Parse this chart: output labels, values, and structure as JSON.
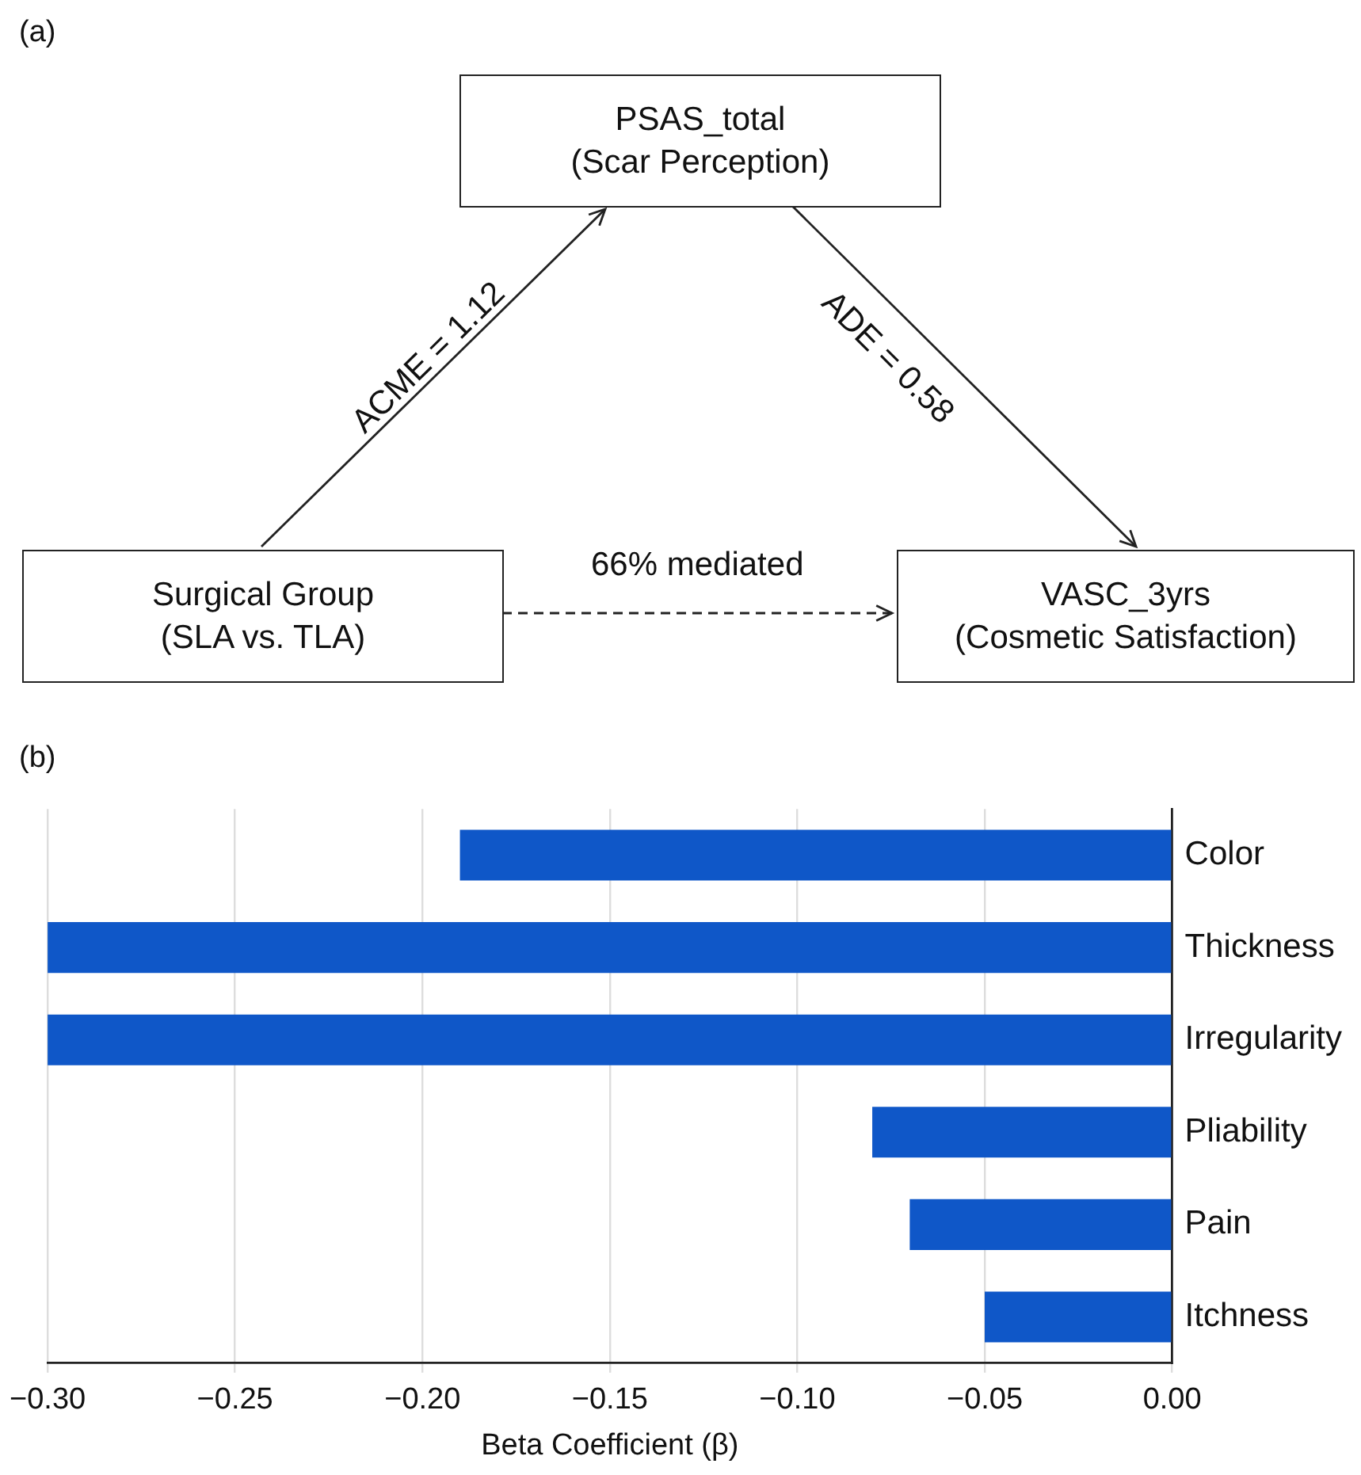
{
  "chart_data": [
    {
      "type": "other",
      "title": "(a)",
      "annotations": [
        "PSAS_total\n(Scar Perception)",
        "Surgical Group\n(SLA vs. TLA)",
        "VASC_3yrs\n(Cosmetic Satisfaction)",
        "ACME = 1.12",
        "ADE = 0.58",
        "66% mediated"
      ]
    },
    {
      "type": "bar",
      "title": "(b)",
      "orientation": "horizontal",
      "categories": [
        "Color",
        "Thickness",
        "Irregularity",
        "Pliability",
        "Pain",
        "Itchness"
      ],
      "values": [
        -0.19,
        -0.3,
        -0.3,
        -0.08,
        -0.07,
        -0.05
      ],
      "color": "#0f57c8",
      "xlabel": "Beta Coefficient (β)",
      "xlim": [
        -0.3,
        0
      ],
      "xticks": [
        {
          "value": -0.3,
          "label": "−0.30"
        },
        {
          "value": -0.25,
          "label": "−0.25"
        },
        {
          "value": -0.2,
          "label": "−0.20"
        },
        {
          "value": -0.15,
          "label": "−0.15"
        },
        {
          "value": -0.1,
          "label": "−0.10"
        },
        {
          "value": -0.05,
          "label": "−0.05"
        },
        {
          "value": 0,
          "label": "0.00"
        }
      ],
      "grid": "x"
    }
  ]
}
